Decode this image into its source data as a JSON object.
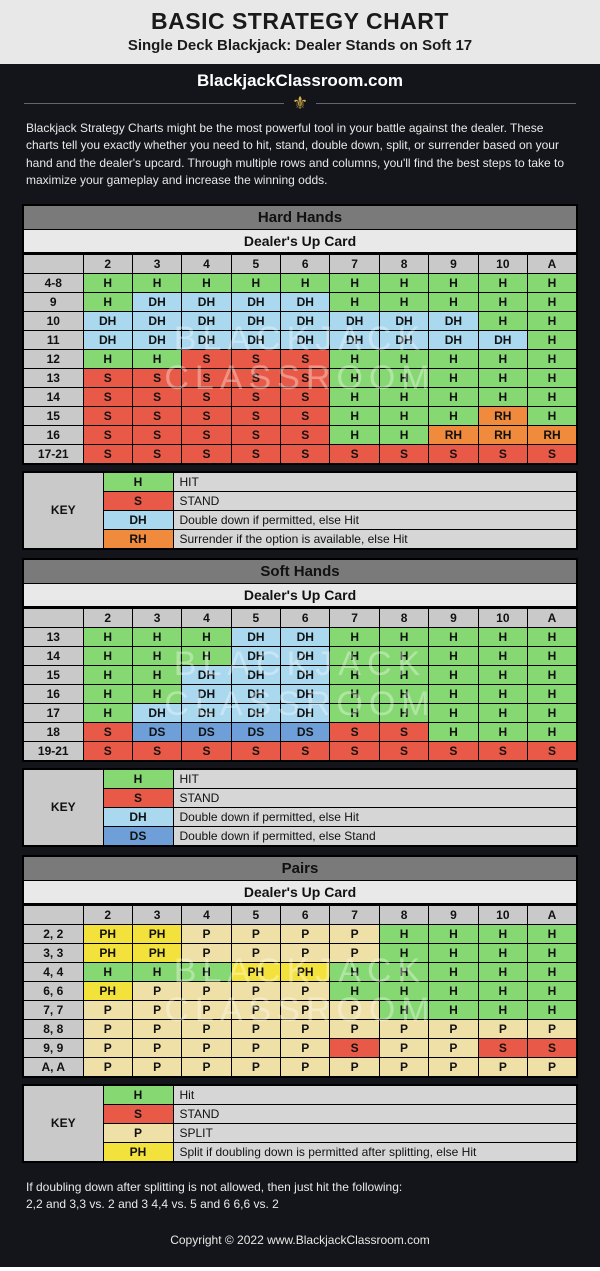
{
  "colors": {
    "H": "#86d872",
    "S": "#e85a47",
    "DH": "#a9d8ef",
    "RH": "#f08a3c",
    "DS": "#6f9fd8",
    "P": "#efe0a8",
    "PH": "#f4e23c"
  },
  "header": {
    "title": "BASIC STRATEGY CHART",
    "subtitle": "Single Deck Blackjack: Dealer Stands on Soft 17",
    "brand": "BlackjackClassroom.com"
  },
  "intro": "Blackjack Strategy Charts might be the most powerful tool in your battle against the dealer. These charts tell you exactly whether you need to hit, stand, double down, split, or surrender based on your hand and the dealer's upcard. Through multiple rows and columns, you'll find the best steps to take to maximize your gameplay and increase the winning odds.",
  "watermark": "BLACKJACK\nCLASSROOM",
  "dealer_cols": [
    "2",
    "3",
    "4",
    "5",
    "6",
    "7",
    "8",
    "9",
    "10",
    "A"
  ],
  "hard": {
    "section": "Hard Hands",
    "sub": "Dealer's Up Card",
    "rows": [
      {
        "label": "4-8",
        "cells": [
          "H",
          "H",
          "H",
          "H",
          "H",
          "H",
          "H",
          "H",
          "H",
          "H"
        ]
      },
      {
        "label": "9",
        "cells": [
          "H",
          "DH",
          "DH",
          "DH",
          "DH",
          "H",
          "H",
          "H",
          "H",
          "H"
        ]
      },
      {
        "label": "10",
        "cells": [
          "DH",
          "DH",
          "DH",
          "DH",
          "DH",
          "DH",
          "DH",
          "DH",
          "H",
          "H"
        ]
      },
      {
        "label": "11",
        "cells": [
          "DH",
          "DH",
          "DH",
          "DH",
          "DH",
          "DH",
          "DH",
          "DH",
          "DH",
          "H"
        ]
      },
      {
        "label": "12",
        "cells": [
          "H",
          "H",
          "S",
          "S",
          "S",
          "H",
          "H",
          "H",
          "H",
          "H"
        ]
      },
      {
        "label": "13",
        "cells": [
          "S",
          "S",
          "S",
          "S",
          "S",
          "H",
          "H",
          "H",
          "H",
          "H"
        ]
      },
      {
        "label": "14",
        "cells": [
          "S",
          "S",
          "S",
          "S",
          "S",
          "H",
          "H",
          "H",
          "H",
          "H"
        ]
      },
      {
        "label": "15",
        "cells": [
          "S",
          "S",
          "S",
          "S",
          "S",
          "H",
          "H",
          "H",
          "RH",
          "H"
        ]
      },
      {
        "label": "16",
        "cells": [
          "S",
          "S",
          "S",
          "S",
          "S",
          "H",
          "H",
          "RH",
          "RH",
          "RH"
        ]
      },
      {
        "label": "17-21",
        "cells": [
          "S",
          "S",
          "S",
          "S",
          "S",
          "S",
          "S",
          "S",
          "S",
          "S"
        ]
      }
    ],
    "key": [
      {
        "sym": "H",
        "text": "HIT"
      },
      {
        "sym": "S",
        "text": "STAND"
      },
      {
        "sym": "DH",
        "text": "Double down if permitted, else Hit"
      },
      {
        "sym": "RH",
        "text": "Surrender if the option is available, else Hit"
      }
    ]
  },
  "soft": {
    "section": "Soft Hands",
    "sub": "Dealer's Up Card",
    "rows": [
      {
        "label": "13",
        "cells": [
          "H",
          "H",
          "H",
          "DH",
          "DH",
          "H",
          "H",
          "H",
          "H",
          "H"
        ]
      },
      {
        "label": "14",
        "cells": [
          "H",
          "H",
          "H",
          "DH",
          "DH",
          "H",
          "H",
          "H",
          "H",
          "H"
        ]
      },
      {
        "label": "15",
        "cells": [
          "H",
          "H",
          "DH",
          "DH",
          "DH",
          "H",
          "H",
          "H",
          "H",
          "H"
        ]
      },
      {
        "label": "16",
        "cells": [
          "H",
          "H",
          "DH",
          "DH",
          "DH",
          "H",
          "H",
          "H",
          "H",
          "H"
        ]
      },
      {
        "label": "17",
        "cells": [
          "H",
          "DH",
          "DH",
          "DH",
          "DH",
          "H",
          "H",
          "H",
          "H",
          "H"
        ]
      },
      {
        "label": "18",
        "cells": [
          "S",
          "DS",
          "DS",
          "DS",
          "DS",
          "S",
          "S",
          "H",
          "H",
          "H"
        ]
      },
      {
        "label": "19-21",
        "cells": [
          "S",
          "S",
          "S",
          "S",
          "S",
          "S",
          "S",
          "S",
          "S",
          "S"
        ]
      }
    ],
    "key": [
      {
        "sym": "H",
        "text": "HIT"
      },
      {
        "sym": "S",
        "text": "STAND"
      },
      {
        "sym": "DH",
        "text": "Double down if permitted, else Hit"
      },
      {
        "sym": "DS",
        "text": "Double down if permitted, else Stand"
      }
    ]
  },
  "pairs": {
    "section": "Pairs",
    "sub": "Dealer's Up Card",
    "rows": [
      {
        "label": "2, 2",
        "cells": [
          "PH",
          "PH",
          "P",
          "P",
          "P",
          "P",
          "H",
          "H",
          "H",
          "H"
        ]
      },
      {
        "label": "3, 3",
        "cells": [
          "PH",
          "PH",
          "P",
          "P",
          "P",
          "P",
          "H",
          "H",
          "H",
          "H"
        ]
      },
      {
        "label": "4, 4",
        "cells": [
          "H",
          "H",
          "H",
          "PH",
          "PH",
          "H",
          "H",
          "H",
          "H",
          "H"
        ]
      },
      {
        "label": "6, 6",
        "cells": [
          "PH",
          "P",
          "P",
          "P",
          "P",
          "H",
          "H",
          "H",
          "H",
          "H"
        ]
      },
      {
        "label": "7, 7",
        "cells": [
          "P",
          "P",
          "P",
          "P",
          "P",
          "P",
          "H",
          "H",
          "H",
          "H"
        ]
      },
      {
        "label": "8, 8",
        "cells": [
          "P",
          "P",
          "P",
          "P",
          "P",
          "P",
          "P",
          "P",
          "P",
          "P"
        ]
      },
      {
        "label": "9, 9",
        "cells": [
          "P",
          "P",
          "P",
          "P",
          "P",
          "S",
          "P",
          "P",
          "S",
          "S"
        ]
      },
      {
        "label": "A, A",
        "cells": [
          "P",
          "P",
          "P",
          "P",
          "P",
          "P",
          "P",
          "P",
          "P",
          "P"
        ]
      }
    ],
    "key": [
      {
        "sym": "H",
        "text": "Hit"
      },
      {
        "sym": "S",
        "text": "STAND"
      },
      {
        "sym": "P",
        "text": "SPLIT"
      },
      {
        "sym": "PH",
        "text": "Split if doubling down is permitted after splitting, else Hit"
      }
    ]
  },
  "footnote1": "If doubling down after splitting is not allowed, then just hit the following:",
  "footnote2": "2,2 and 3,3 vs. 2 and 3    4,4 vs. 5 and 6    6,6 vs. 2",
  "copyright": "Copyright © 2022 www.BlackjackClassroom.com",
  "key_label": "KEY"
}
